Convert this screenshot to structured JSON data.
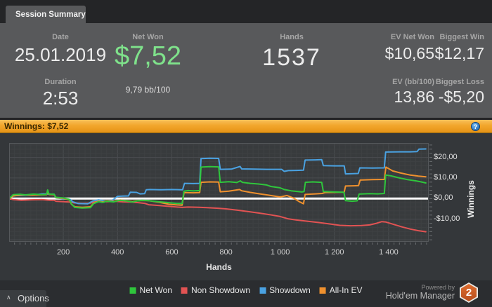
{
  "window": {
    "tab_label": "Session Summary"
  },
  "header": {
    "date": {
      "label": "Date",
      "value": "25.01.2019"
    },
    "duration": {
      "label": "Duration",
      "value": "2:53"
    },
    "net_won": {
      "label": "Net Won",
      "value": "$7,52",
      "sub": "9,79 bb/100"
    },
    "hands": {
      "label": "Hands",
      "value": "1537"
    },
    "ev_net_won": {
      "label": "EV Net Won",
      "value": "$10,65"
    },
    "ev_bb100": {
      "label": "EV (bb/100)",
      "value": "13,86"
    },
    "biggest_win": {
      "label": "Biggest Win",
      "value": "$12,17"
    },
    "biggest_loss": {
      "label": "Biggest Loss",
      "value": "-$5,20"
    }
  },
  "winnings_bar": {
    "label": "Winnings: $7,52",
    "help_icon": "?"
  },
  "colors": {
    "net_won": "#2fc63c",
    "non_showdown": "#e25353",
    "showdown": "#4aa2e2",
    "all_in_ev": "#f0912e",
    "accent_orange": "#f2a62c",
    "zero_line": "#ffffff"
  },
  "chart_data": {
    "type": "line",
    "xlabel": "Hands",
    "ylabel": "Winnings",
    "xlim": [
      0,
      1548
    ],
    "ylim": [
      -21,
      27
    ],
    "grid": {
      "minor_x": 20,
      "major_x": 200,
      "minor_y": 2,
      "major_y": 10
    },
    "zero_line": 0,
    "x_ticks": [
      {
        "v": 200,
        "label": "200"
      },
      {
        "v": 400,
        "label": "400"
      },
      {
        "v": 600,
        "label": "600"
      },
      {
        "v": 800,
        "label": "800"
      },
      {
        "v": 1000,
        "label": "1 000"
      },
      {
        "v": 1200,
        "label": "1 200"
      },
      {
        "v": 1400,
        "label": "1 400"
      }
    ],
    "y_ticks": [
      {
        "v": 20,
        "label": "$20,00"
      },
      {
        "v": 10,
        "label": "$10,00"
      },
      {
        "v": 0,
        "label": "$0,00"
      },
      {
        "v": -10,
        "label": "-$10,00"
      }
    ],
    "series": [
      {
        "name": "Non Showdown",
        "color": "#e25353",
        "points": [
          [
            0,
            0
          ],
          [
            15,
            -0.5
          ],
          [
            45,
            -0.8
          ],
          [
            80,
            -0.6
          ],
          [
            120,
            -0.5
          ],
          [
            150,
            -0.8
          ],
          [
            166,
            -0.8
          ],
          [
            173,
            -1.3
          ],
          [
            200,
            -1.5
          ],
          [
            225,
            -1.7
          ],
          [
            240,
            -2.1
          ],
          [
            270,
            -2.3
          ],
          [
            300,
            -2.2
          ],
          [
            315,
            -1.6
          ],
          [
            335,
            -1.1
          ],
          [
            360,
            -1.5
          ],
          [
            390,
            -1.3
          ],
          [
            420,
            -1.6
          ],
          [
            450,
            -1.7
          ],
          [
            480,
            -2.0
          ],
          [
            500,
            -2.3
          ],
          [
            515,
            -3.0
          ],
          [
            555,
            -3.4
          ],
          [
            600,
            -3.9
          ],
          [
            638,
            -4.3
          ],
          [
            660,
            -4.1
          ],
          [
            700,
            -4.2
          ],
          [
            730,
            -4.4
          ],
          [
            770,
            -4.7
          ],
          [
            800,
            -5.0
          ],
          [
            840,
            -5.6
          ],
          [
            880,
            -6.3
          ],
          [
            920,
            -7.0
          ],
          [
            960,
            -7.8
          ],
          [
            1000,
            -8.7
          ],
          [
            1028,
            -9.8
          ],
          [
            1060,
            -10.4
          ],
          [
            1100,
            -11.0
          ],
          [
            1140,
            -11.6
          ],
          [
            1180,
            -12.3
          ],
          [
            1220,
            -13.0
          ],
          [
            1260,
            -13.2
          ],
          [
            1300,
            -13.1
          ],
          [
            1330,
            -12.8
          ],
          [
            1355,
            -12.0
          ],
          [
            1375,
            -11.2
          ],
          [
            1390,
            -11.4
          ],
          [
            1420,
            -12.6
          ],
          [
            1450,
            -13.8
          ],
          [
            1480,
            -14.8
          ],
          [
            1510,
            -15.6
          ],
          [
            1537,
            -16.1
          ]
        ]
      },
      {
        "name": "Showdown",
        "color": "#4aa2e2",
        "points": [
          [
            0,
            0
          ],
          [
            15,
            1.4
          ],
          [
            50,
            1.6
          ],
          [
            90,
            1.8
          ],
          [
            125,
            2.3
          ],
          [
            150,
            2.2
          ],
          [
            166,
            2.1
          ],
          [
            173,
            0.3
          ],
          [
            200,
            -0.1
          ],
          [
            225,
            -0.4
          ],
          [
            235,
            -1.6
          ],
          [
            255,
            -2.4
          ],
          [
            290,
            -2.5
          ],
          [
            310,
            -1.1
          ],
          [
            330,
            -0.6
          ],
          [
            355,
            -1.2
          ],
          [
            380,
            -0.9
          ],
          [
            400,
            1.1
          ],
          [
            418,
            1.2
          ],
          [
            440,
            1.3
          ],
          [
            447,
            3.1
          ],
          [
            470,
            3.0
          ],
          [
            483,
            2.3
          ],
          [
            500,
            2.4
          ],
          [
            506,
            4.3
          ],
          [
            520,
            4.4
          ],
          [
            560,
            4.3
          ],
          [
            600,
            4.4
          ],
          [
            640,
            4.3
          ],
          [
            647,
            7.4
          ],
          [
            680,
            7.3
          ],
          [
            703,
            7.4
          ],
          [
            708,
            19.4
          ],
          [
            740,
            19.6
          ],
          [
            773,
            19.5
          ],
          [
            779,
            14.2
          ],
          [
            820,
            14.3
          ],
          [
            852,
            15.6
          ],
          [
            858,
            14.4
          ],
          [
            900,
            14.3
          ],
          [
            950,
            14.2
          ],
          [
            1005,
            14.2
          ],
          [
            1015,
            13.2
          ],
          [
            1030,
            13.6
          ],
          [
            1060,
            13.7
          ],
          [
            1086,
            13.8
          ],
          [
            1092,
            18.7
          ],
          [
            1130,
            18.8
          ],
          [
            1153,
            18.9
          ],
          [
            1159,
            16.0
          ],
          [
            1200,
            15.9
          ],
          [
            1236,
            15.9
          ],
          [
            1241,
            12.0
          ],
          [
            1270,
            12.1
          ],
          [
            1288,
            12.2
          ],
          [
            1294,
            14.9
          ],
          [
            1340,
            14.8
          ],
          [
            1384,
            14.9
          ],
          [
            1389,
            22.6
          ],
          [
            1440,
            22.7
          ],
          [
            1480,
            22.7
          ],
          [
            1505,
            22.8
          ],
          [
            1512,
            24.0
          ],
          [
            1537,
            24.1
          ]
        ]
      },
      {
        "name": "All-In EV",
        "color": "#f0912e",
        "points": [
          [
            0,
            0
          ],
          [
            15,
            1.3
          ],
          [
            45,
            1.8
          ],
          [
            80,
            1.7
          ],
          [
            120,
            1.8
          ],
          [
            138,
            1.9
          ],
          [
            142,
            3.1
          ],
          [
            147,
            2.0
          ],
          [
            166,
            1.9
          ],
          [
            173,
            0.4
          ],
          [
            200,
            0.1
          ],
          [
            222,
            -0.6
          ],
          [
            230,
            -2.8
          ],
          [
            242,
            -4.0
          ],
          [
            270,
            -4.2
          ],
          [
            300,
            -4.0
          ],
          [
            312,
            -2.2
          ],
          [
            330,
            -1.2
          ],
          [
            345,
            -1.7
          ],
          [
            360,
            -1.1
          ],
          [
            385,
            -1.4
          ],
          [
            410,
            -0.7
          ],
          [
            435,
            -1.1
          ],
          [
            455,
            -1.5
          ],
          [
            470,
            -1.1
          ],
          [
            490,
            -0.9
          ],
          [
            515,
            -1.0
          ],
          [
            555,
            -1.8
          ],
          [
            590,
            -2.8
          ],
          [
            620,
            -3.1
          ],
          [
            638,
            -3.2
          ],
          [
            645,
            2.9
          ],
          [
            680,
            2.8
          ],
          [
            703,
            2.9
          ],
          [
            708,
            7.9
          ],
          [
            740,
            8.1
          ],
          [
            773,
            8.0
          ],
          [
            779,
            3.3
          ],
          [
            810,
            3.6
          ],
          [
            850,
            4.4
          ],
          [
            858,
            3.8
          ],
          [
            890,
            3.0
          ],
          [
            925,
            2.3
          ],
          [
            960,
            1.6
          ],
          [
            1000,
            0.8
          ],
          [
            1025,
            1.5
          ],
          [
            1050,
            0.2
          ],
          [
            1070,
            -1.5
          ],
          [
            1086,
            -2.5
          ],
          [
            1092,
            2.0
          ],
          [
            1130,
            2.3
          ],
          [
            1155,
            2.5
          ],
          [
            1165,
            2.9
          ],
          [
            1200,
            3.0
          ],
          [
            1236,
            3.1
          ],
          [
            1241,
            6.1
          ],
          [
            1270,
            6.2
          ],
          [
            1289,
            6.3
          ],
          [
            1295,
            9.0
          ],
          [
            1340,
            9.2
          ],
          [
            1384,
            9.3
          ],
          [
            1390,
            15.3
          ],
          [
            1415,
            13.4
          ],
          [
            1445,
            12.4
          ],
          [
            1480,
            11.4
          ],
          [
            1510,
            10.9
          ],
          [
            1537,
            10.6
          ]
        ]
      },
      {
        "name": "Net Won",
        "color": "#2fc63c",
        "points": [
          [
            0,
            0
          ],
          [
            15,
            1.9
          ],
          [
            40,
            2.1
          ],
          [
            60,
            1.8
          ],
          [
            90,
            2.2
          ],
          [
            120,
            1.9
          ],
          [
            138,
            2.0
          ],
          [
            142,
            4.2
          ],
          [
            147,
            2.2
          ],
          [
            166,
            2.1
          ],
          [
            172,
            0.6
          ],
          [
            200,
            0.3
          ],
          [
            222,
            -0.4
          ],
          [
            230,
            -2.6
          ],
          [
            242,
            -4.3
          ],
          [
            270,
            -4.6
          ],
          [
            300,
            -4.4
          ],
          [
            312,
            -2.4
          ],
          [
            330,
            -1.5
          ],
          [
            345,
            -1.9
          ],
          [
            360,
            -1.3
          ],
          [
            385,
            -1.6
          ],
          [
            410,
            -0.8
          ],
          [
            435,
            -1.2
          ],
          [
            455,
            -1.7
          ],
          [
            470,
            -1.2
          ],
          [
            490,
            -0.8
          ],
          [
            512,
            -1.0
          ],
          [
            540,
            -1.4
          ],
          [
            575,
            -1.8
          ],
          [
            615,
            -2.3
          ],
          [
            638,
            -2.4
          ],
          [
            645,
            3.6
          ],
          [
            660,
            3.9
          ],
          [
            680,
            3.7
          ],
          [
            703,
            3.9
          ],
          [
            708,
            15.3
          ],
          [
            740,
            15.5
          ],
          [
            773,
            15.4
          ],
          [
            779,
            7.9
          ],
          [
            810,
            8.2
          ],
          [
            840,
            7.8
          ],
          [
            853,
            8.6
          ],
          [
            860,
            7.9
          ],
          [
            890,
            7.4
          ],
          [
            920,
            7.1
          ],
          [
            950,
            6.6
          ],
          [
            965,
            5.9
          ],
          [
            1000,
            5.2
          ],
          [
            1015,
            4.4
          ],
          [
            1040,
            3.8
          ],
          [
            1080,
            3.2
          ],
          [
            1088,
            3.4
          ],
          [
            1093,
            7.9
          ],
          [
            1120,
            8.1
          ],
          [
            1153,
            7.9
          ],
          [
            1159,
            3.4
          ],
          [
            1200,
            3.2
          ],
          [
            1235,
            3.1
          ],
          [
            1241,
            -1.0
          ],
          [
            1265,
            -1.3
          ],
          [
            1284,
            -1.1
          ],
          [
            1291,
            2.2
          ],
          [
            1330,
            2.4
          ],
          [
            1360,
            2.3
          ],
          [
            1384,
            2.5
          ],
          [
            1389,
            11.4
          ],
          [
            1410,
            11.0
          ],
          [
            1440,
            10.0
          ],
          [
            1470,
            9.2
          ],
          [
            1500,
            8.6
          ],
          [
            1520,
            8.1
          ],
          [
            1537,
            7.6
          ]
        ]
      }
    ]
  },
  "legend": {
    "items": [
      {
        "label": "Net Won",
        "color": "#2fc63c"
      },
      {
        "label": "Non Showdown",
        "color": "#e25353"
      },
      {
        "label": "Showdown",
        "color": "#4aa2e2"
      },
      {
        "label": "All-In EV",
        "color": "#f0912e"
      }
    ]
  },
  "bottom_bar": {
    "options_label": "Options",
    "chevron_icon": "∧"
  },
  "branding": {
    "powered_by": "Powered by",
    "brand": "Hold'em Manager",
    "logo_number": "2"
  }
}
